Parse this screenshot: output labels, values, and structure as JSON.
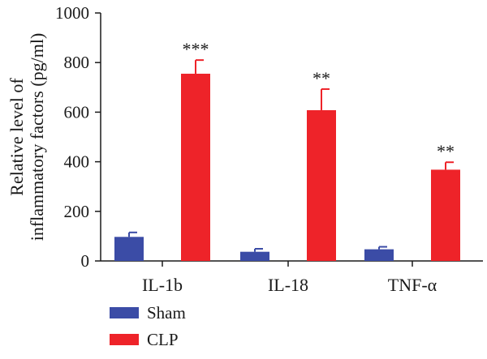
{
  "chart_data": {
    "type": "bar",
    "title": "",
    "ylabel_lines": [
      "Relative level of",
      "inflammatory factors (pg/ml)"
    ],
    "xlabel": "",
    "ylim": [
      0,
      1000
    ],
    "yticks": [
      0,
      200,
      400,
      600,
      800,
      1000
    ],
    "categories": [
      "IL-1b",
      "IL-18",
      "TNF-α"
    ],
    "series": [
      {
        "name": "Sham",
        "color": "#3b4ca6",
        "values": [
          97,
          37,
          47
        ],
        "errors": [
          18,
          12,
          10
        ]
      },
      {
        "name": "CLP",
        "color": "#ee2329",
        "values": [
          755,
          608,
          368
        ],
        "errors": [
          55,
          85,
          30
        ]
      }
    ],
    "significance": [
      "***",
      "**",
      "**"
    ],
    "legend_position": "bottom-left"
  }
}
